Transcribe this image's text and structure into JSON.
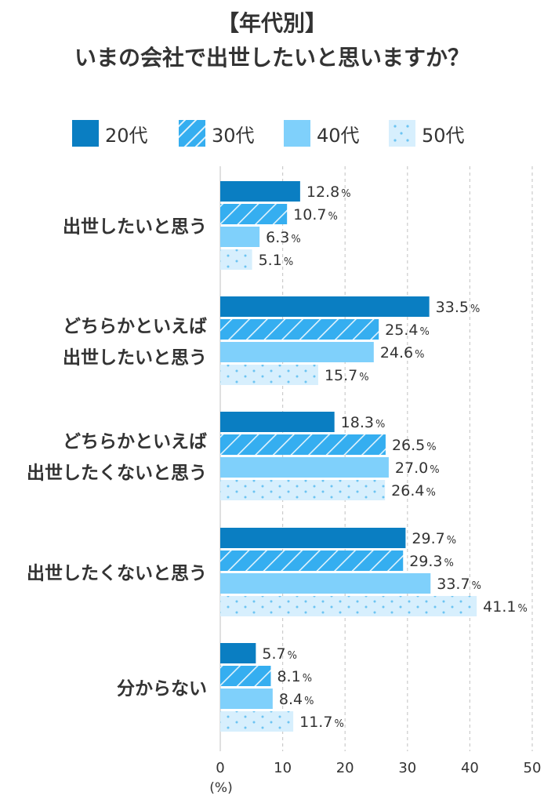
{
  "title": {
    "line1": "【年代別】",
    "line2": "いまの会社で出世したいと思いますか？"
  },
  "colors": {
    "20s": "#0a7ec2",
    "30s": "#35aef0",
    "40s": "#7fd0fb",
    "50s": "#d7effd",
    "text": "#333333",
    "grid": "#cccccc"
  },
  "legend": [
    {
      "label": "20代",
      "pattern": "solid-dark"
    },
    {
      "label": "30代",
      "pattern": "diagonal-stripes"
    },
    {
      "label": "40代",
      "pattern": "solid-light"
    },
    {
      "label": "50代",
      "pattern": "dots"
    }
  ],
  "chart_data": {
    "type": "bar",
    "orientation": "horizontal",
    "categories": [
      [
        "出世したいと思う"
      ],
      [
        "どちらかといえば",
        "出世したいと思う"
      ],
      [
        "どちらかといえば",
        "出世したくないと思う"
      ],
      [
        "出世したくないと思う"
      ],
      [
        "分からない"
      ]
    ],
    "series": [
      {
        "name": "20代",
        "values": [
          12.8,
          33.5,
          18.3,
          29.7,
          5.7
        ]
      },
      {
        "name": "30代",
        "values": [
          10.7,
          25.4,
          26.5,
          29.3,
          8.1
        ]
      },
      {
        "name": "40代",
        "values": [
          6.3,
          24.6,
          27.0,
          33.7,
          8.4
        ]
      },
      {
        "name": "50代",
        "values": [
          5.1,
          15.7,
          26.4,
          41.1,
          11.7
        ]
      }
    ],
    "value_labels": [
      [
        "12.8",
        "33.5",
        "18.3",
        "29.7",
        "5.7"
      ],
      [
        "10.7",
        "25.4",
        "26.5",
        "29.3",
        "8.1"
      ],
      [
        "6.3",
        "24.6",
        "27.0",
        "33.7",
        "8.4"
      ],
      [
        "5.1",
        "15.7",
        "26.4",
        "41.1",
        "11.7"
      ]
    ],
    "value_suffix": "%",
    "xlim": [
      0,
      50
    ],
    "xticks": [
      "0",
      "10",
      "20",
      "30",
      "40",
      "50"
    ],
    "xunit": "(%)",
    "grid": true
  }
}
